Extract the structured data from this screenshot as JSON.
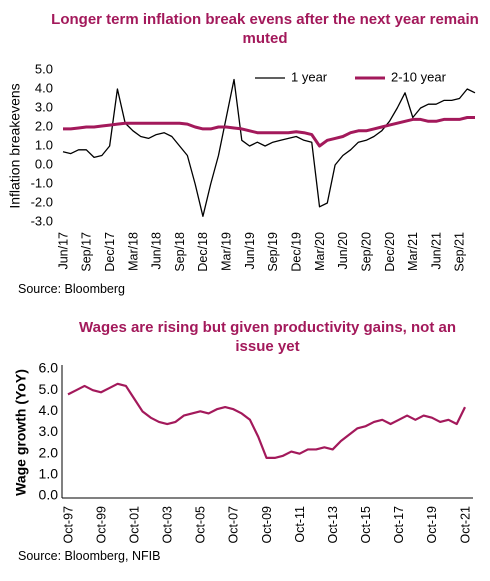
{
  "chart_data": [
    {
      "type": "line",
      "title": "Longer term inflation break evens after the next year remain muted",
      "ylabel": "Inflation breakevens",
      "source": "Source: Bloomberg",
      "categories": [
        "Jun/17",
        null,
        null,
        "Sep/17",
        null,
        null,
        "Dec/17",
        null,
        null,
        "Mar/18",
        null,
        null,
        "Jun/18",
        null,
        null,
        "Sep/18",
        null,
        null,
        "Dec/18",
        null,
        null,
        "Mar/19",
        null,
        null,
        "Jun/19",
        null,
        null,
        "Sep/19",
        null,
        null,
        "Dec/19",
        null,
        null,
        "Mar/20",
        null,
        null,
        "Jun/20",
        null,
        null,
        "Sep/20",
        null,
        null,
        "Dec/20",
        null,
        null,
        "Mar/21",
        null,
        null,
        "Jun/21",
        null,
        null,
        "Sep/21",
        null,
        null
      ],
      "series": [
        {
          "name": "1 year",
          "color": "#000000",
          "values": [
            0.7,
            0.6,
            0.8,
            0.8,
            0.4,
            0.5,
            1.0,
            4.0,
            2.2,
            1.8,
            1.5,
            1.4,
            1.6,
            1.7,
            1.5,
            1.0,
            0.5,
            -1.0,
            -2.7,
            -1.0,
            0.5,
            2.5,
            4.5,
            1.3,
            1.0,
            1.2,
            1.0,
            1.2,
            1.3,
            1.4,
            1.5,
            1.3,
            1.2,
            -2.2,
            -2.0,
            0.0,
            0.5,
            0.8,
            1.2,
            1.3,
            1.5,
            1.8,
            2.3,
            3.0,
            3.8,
            2.5,
            3.0,
            3.2,
            3.2,
            3.4,
            3.4,
            3.5,
            4.0,
            3.8
          ]
        },
        {
          "name": "2-10 year",
          "color": "#a3195b",
          "values": [
            1.9,
            1.9,
            1.95,
            2.0,
            2.0,
            2.05,
            2.1,
            2.15,
            2.2,
            2.2,
            2.2,
            2.2,
            2.2,
            2.2,
            2.2,
            2.2,
            2.15,
            2.0,
            1.9,
            1.9,
            2.0,
            2.0,
            1.95,
            1.9,
            1.8,
            1.7,
            1.7,
            1.7,
            1.7,
            1.7,
            1.75,
            1.7,
            1.6,
            1.0,
            1.3,
            1.4,
            1.5,
            1.7,
            1.8,
            1.8,
            1.9,
            2.0,
            2.1,
            2.2,
            2.3,
            2.4,
            2.4,
            2.3,
            2.3,
            2.4,
            2.4,
            2.4,
            2.5,
            2.5
          ]
        }
      ],
      "ylim": [
        -3,
        5
      ],
      "yticks": [
        {
          "value": -3,
          "label": "-3.0"
        },
        {
          "value": -2,
          "label": "-2.0"
        },
        {
          "value": -1,
          "label": "-1.0"
        },
        {
          "value": 0,
          "label": "0.0"
        },
        {
          "value": 1,
          "label": "1.0"
        },
        {
          "value": 2,
          "label": "2.0"
        },
        {
          "value": 3,
          "label": "3.0"
        },
        {
          "value": 4,
          "label": "4.0"
        },
        {
          "value": 5,
          "label": "5.0"
        }
      ],
      "grid": false,
      "legend": "upper right"
    },
    {
      "type": "line",
      "title": "Wages are rising but given productivity gains, not an issue yet",
      "ylabel": "Wage growth (YoY)",
      "source": "Source: Bloomberg, NFIB",
      "categories": [
        "Oct-97",
        null,
        null,
        null,
        "Oct-99",
        null,
        null,
        null,
        "Oct-01",
        null,
        null,
        null,
        "Oct-03",
        null,
        null,
        null,
        "Oct-05",
        null,
        null,
        null,
        "Oct-07",
        null,
        null,
        null,
        "Oct-09",
        null,
        null,
        null,
        "Oct-11",
        null,
        null,
        null,
        "Oct-13",
        null,
        null,
        null,
        "Oct-15",
        null,
        null,
        null,
        "Oct-17",
        null,
        null,
        null,
        "Oct-19",
        null,
        null,
        null,
        "Oct-21"
      ],
      "values": [
        4.8,
        5.0,
        5.2,
        5.0,
        4.9,
        5.1,
        5.3,
        5.2,
        4.6,
        4.0,
        3.7,
        3.5,
        3.4,
        3.5,
        3.8,
        3.9,
        4.0,
        3.9,
        4.1,
        4.2,
        4.1,
        3.9,
        3.6,
        2.8,
        1.8,
        1.8,
        1.9,
        2.1,
        2.0,
        2.2,
        2.2,
        2.3,
        2.2,
        2.6,
        2.9,
        3.2,
        3.3,
        3.5,
        3.6,
        3.4,
        3.6,
        3.8,
        3.6,
        3.8,
        3.7,
        3.5,
        3.6,
        3.4,
        4.2
      ],
      "color": "#a3195b",
      "ylim": [
        0,
        6
      ],
      "yticks": [
        {
          "value": 0,
          "label": "0.0"
        },
        {
          "value": 1,
          "label": "1.0"
        },
        {
          "value": 2,
          "label": "2.0"
        },
        {
          "value": 3,
          "label": "3.0"
        },
        {
          "value": 4,
          "label": "4.0"
        },
        {
          "value": 5,
          "label": "5.0"
        },
        {
          "value": 6,
          "label": "6.0"
        }
      ],
      "grid": false
    }
  ]
}
